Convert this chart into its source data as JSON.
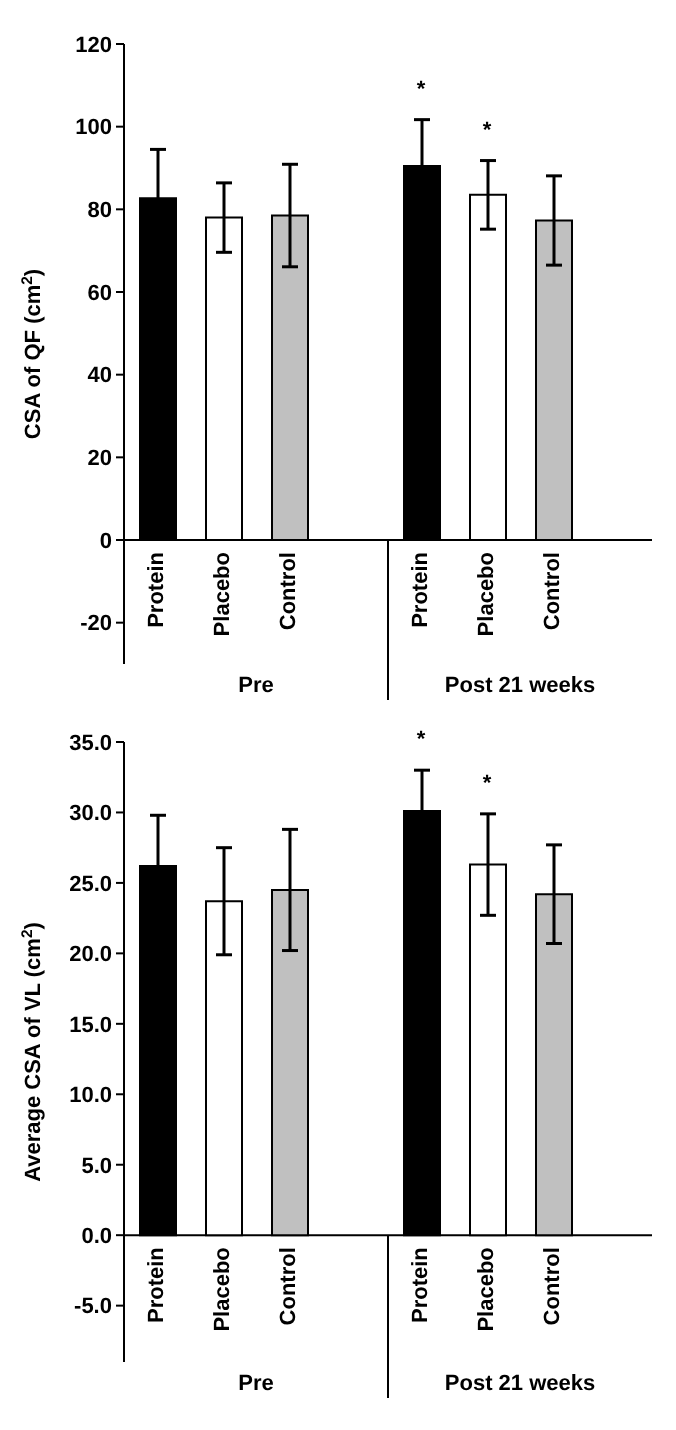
{
  "chart_data": [
    {
      "type": "bar",
      "ylabel": "CSA of QF (cm$^{2}$)",
      "categories": [
        "Protein",
        "Placebo",
        "Control",
        null,
        "Protein",
        "Placebo",
        "Control",
        null
      ],
      "values": [
        82.7,
        78,
        78.5,
        null,
        90.5,
        83.5,
        77.3,
        null
      ],
      "colors": [
        "#000000",
        "#ffffff",
        "#c0c0c0",
        null,
        "#000000",
        "#ffffff",
        "#c0c0c0",
        null
      ],
      "errors": [
        11.8,
        8.4,
        12.4,
        null,
        11.2,
        8.3,
        10.8,
        null
      ],
      "ylim": [
        -30,
        120
      ],
      "yticks": [
        -20,
        0,
        20,
        40,
        60,
        80,
        100,
        120
      ],
      "annotations": [
        "*",
        "*",
        "Pre",
        "Post 21 weeks"
      ]
    },
    {
      "type": "bar",
      "ylabel": "Average CSA of VL (cm$^{2}$)",
      "categories": [
        "Protein",
        "Placebo",
        "Control",
        null,
        "Protein",
        "Placebo",
        "Control",
        null
      ],
      "values": [
        26.2,
        23.7,
        24.5,
        null,
        30.1,
        26.3,
        24.2,
        null
      ],
      "colors": [
        "#000000",
        "#ffffff",
        "#c0c0c0",
        null,
        "#000000",
        "#ffffff",
        "#c0c0c0",
        null
      ],
      "errors": [
        3.6,
        3.8,
        4.3,
        null,
        2.9,
        3.6,
        3.5,
        null
      ],
      "ylim": [
        -9,
        35
      ],
      "yticks": [
        {
          "value": -5,
          "label": "-5.0"
        },
        {
          "value": 0,
          "label": "0.0"
        },
        {
          "value": 5,
          "label": "5.0"
        },
        {
          "value": 10,
          "label": "10.0"
        },
        {
          "value": 15,
          "label": "15.0"
        },
        {
          "value": 20,
          "label": "20.0"
        },
        {
          "value": 25,
          "label": "25.0"
        },
        {
          "value": 30,
          "label": "30.0"
        },
        {
          "value": 35,
          "label": "35.0"
        }
      ],
      "annotations": [
        "*",
        "*",
        "Pre",
        "Post 21 weeks"
      ]
    }
  ]
}
